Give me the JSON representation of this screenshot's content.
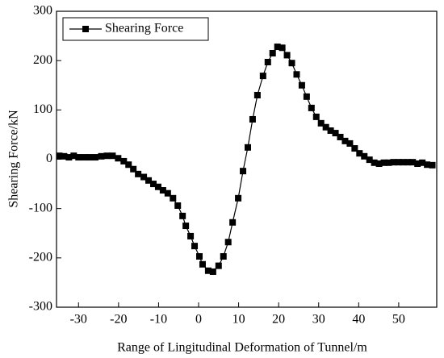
{
  "chart_data": {
    "type": "line",
    "x_label": "Range of Lingitudinal Deformation of Tunnel/m",
    "y_label": "Shearing Force/kN",
    "x": [
      -34.8,
      -33.6,
      -32.4,
      -31.2,
      -30.0,
      -28.6,
      -27.2,
      -25.8,
      -24.3,
      -22.9,
      -21.5,
      -20.1,
      -18.7,
      -17.5,
      -16.3,
      -15.1,
      -13.7,
      -12.5,
      -11.3,
      -10.1,
      -8.9,
      -7.7,
      -6.4,
      -5.2,
      -4.0,
      -3.2,
      -2.0,
      -1.0,
      0.2,
      1.0,
      2.4,
      3.6,
      5.0,
      6.2,
      7.4,
      8.5,
      9.9,
      11.1,
      12.3,
      13.5,
      14.7,
      16.1,
      17.3,
      18.5,
      19.7,
      20.9,
      22.1,
      23.3,
      24.5,
      25.8,
      27.0,
      28.2,
      29.4,
      30.6,
      31.8,
      33.0,
      34.2,
      35.4,
      36.6,
      37.8,
      39.0,
      40.2,
      41.4,
      42.7,
      43.9,
      45.1,
      46.3,
      47.5,
      48.7,
      49.9,
      51.1,
      52.3,
      53.5,
      54.7,
      55.9,
      57.1,
      58.4
    ],
    "series": [
      {
        "name": "Shearing Force",
        "color": "#000000",
        "values": [
          7,
          6,
          4,
          7,
          4,
          4,
          4,
          4,
          6,
          7,
          7,
          2,
          -4,
          -11,
          -20,
          -30,
          -36,
          -43,
          -50,
          -56,
          -63,
          -69,
          -79,
          -94,
          -115,
          -135,
          -156,
          -176,
          -197,
          -213,
          -226,
          -228,
          -216,
          -197,
          -168,
          -128,
          -79,
          -24,
          24,
          81,
          130,
          169,
          197,
          215,
          228,
          226,
          211,
          195,
          172,
          150,
          127,
          104,
          86,
          73,
          65,
          58,
          53,
          45,
          37,
          32,
          22,
          12,
          6,
          -1,
          -7,
          -9,
          -7,
          -7,
          -6,
          -6,
          -6,
          -6,
          -6,
          -9,
          -7,
          -11,
          -12
        ]
      }
    ],
    "xlim": [
      -35.5,
      59.5
    ],
    "xticks": [
      -30,
      -20,
      -10,
      0,
      10,
      20,
      30,
      40,
      50
    ],
    "ylim": [
      -300,
      300
    ],
    "yticks": [
      -300,
      -200,
      -100,
      0,
      100,
      200,
      300
    ],
    "legend": "upper left",
    "grid": false
  }
}
